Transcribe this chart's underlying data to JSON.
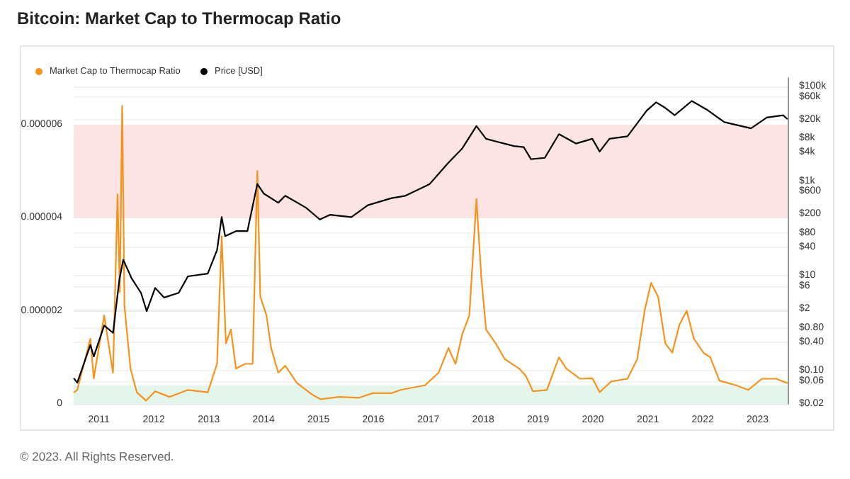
{
  "chart_data": {
    "type": "line",
    "title": "Bitcoin: Market Cap to Thermocap Ratio",
    "annotations": [
      "© 2023. All Rights Reserved."
    ],
    "xlim": [
      "2010-07-17",
      "2023-07-20"
    ],
    "xticks": [
      "2011",
      "2012",
      "2013",
      "2014",
      "2015",
      "2016",
      "2017",
      "2018",
      "2019",
      "2020",
      "2021",
      "2022",
      "2023"
    ],
    "ylim": [
      0,
      7e-06
    ],
    "yticks": [
      0,
      {
        "value": 2e-06,
        "label": "0.000002"
      },
      {
        "value": 4e-06,
        "label": "0.000004"
      },
      {
        "value": 6e-06,
        "label": "0.000006"
      }
    ],
    "y2lim": [
      0.02,
      150000
    ],
    "y2ticks": [
      {
        "value": 0.02,
        "label": "$0.02"
      },
      {
        "value": 0.06,
        "label": "$0.06"
      },
      {
        "value": 0.1,
        "label": "$0.10"
      },
      {
        "value": 0.4,
        "label": "$0.40"
      },
      {
        "value": 0.8,
        "label": "$0.80"
      },
      {
        "value": 2,
        "label": "$2"
      },
      {
        "value": 6,
        "label": "$6"
      },
      {
        "value": 10,
        "label": "$10"
      },
      {
        "value": 40,
        "label": "$40"
      },
      {
        "value": 80,
        "label": "$80"
      },
      {
        "value": 200,
        "label": "$200"
      },
      {
        "value": 600,
        "label": "$600"
      },
      {
        "value": 1000,
        "label": "$1k"
      },
      {
        "value": 4000,
        "label": "$4k"
      },
      {
        "value": 8000,
        "label": "$8k"
      },
      {
        "value": 20000,
        "label": "$20k"
      },
      {
        "value": 60000,
        "label": "$60k"
      },
      {
        "value": 100000,
        "label": "$100k"
      }
    ],
    "log": "y2",
    "grid": "y",
    "legend": "top left",
    "marker": "none",
    "line_style": "solid",
    "bands": [
      {
        "axis": "y",
        "from": 4e-06,
        "to": 6e-06,
        "color": "#fde4e4"
      },
      {
        "axis": "y",
        "from": 0,
        "to": 4e-07,
        "color": "#e4f5ec"
      }
    ],
    "series": [
      {
        "name": "Market Cap to Thermocap Ratio",
        "color": "#f7931a",
        "x": [
          "2010-07-20",
          "2010-08-10",
          "2010-11-05",
          "2010-11-28",
          "2011-02-05",
          "2011-04-05",
          "2011-05-05",
          "2011-05-20",
          "2011-06-05",
          "2011-06-20",
          "2011-07-30",
          "2011-09-10",
          "2011-11-10",
          "2012-01-10",
          "2012-04-15",
          "2012-08-15",
          "2012-12-25",
          "2013-02-25",
          "2013-03-28",
          "2013-04-25",
          "2013-05-28",
          "2013-07-01",
          "2013-09-01",
          "2013-10-20",
          "2013-11-20",
          "2013-12-10",
          "2014-01-20",
          "2014-02-20",
          "2014-04-08",
          "2014-05-25",
          "2014-08-10",
          "2014-11-15",
          "2015-01-15",
          "2015-05-20",
          "2015-09-25",
          "2015-12-28",
          "2016-05-01",
          "2016-07-01",
          "2016-12-10",
          "2017-03-10",
          "2017-05-15",
          "2017-07-01",
          "2017-08-15",
          "2017-10-01",
          "2017-11-17",
          "2017-12-20",
          "2018-01-20",
          "2018-03-25",
          "2018-05-25",
          "2018-08-28",
          "2018-10-12",
          "2018-11-28",
          "2019-03-01",
          "2019-05-20",
          "2019-07-08",
          "2019-10-08",
          "2019-12-28",
          "2020-02-15",
          "2020-05-01",
          "2020-08-18",
          "2020-10-22",
          "2020-12-10",
          "2021-01-22",
          "2021-03-10",
          "2021-04-27",
          "2021-06-12",
          "2021-07-30",
          "2021-09-16",
          "2021-11-03",
          "2022-01-05",
          "2022-02-20",
          "2022-04-22",
          "2022-08-10",
          "2022-10-30",
          "2023-01-30",
          "2023-05-05",
          "2023-07-15"
        ],
        "values": [
          2.5e-07,
          3e-07,
          1.4e-06,
          5.5e-07,
          1.9e-06,
          6.7e-07,
          4.5e-06,
          2.4e-06,
          6.4e-06,
          2.1e-06,
          7.6e-07,
          2.5e-07,
          7e-08,
          2.7e-07,
          1.5e-07,
          3e-07,
          2.5e-07,
          8.6e-07,
          3.6e-06,
          1.3e-06,
          1.6e-06,
          7.6e-07,
          8.6e-07,
          8.6e-07,
          5e-06,
          2.3e-06,
          1.9e-06,
          1.2e-06,
          6.7e-07,
          8.2e-07,
          4.5e-07,
          2.1e-07,
          1e-07,
          1.5e-07,
          1.3e-07,
          2.3e-07,
          2.3e-07,
          3e-07,
          4e-07,
          6.7e-07,
          1.2e-06,
          8.6e-07,
          1.5e-06,
          1.9e-06,
          4.4e-06,
          2.7e-06,
          1.6e-06,
          1.3e-06,
          9.6e-07,
          7.6e-07,
          6e-07,
          2.7e-07,
          3e-07,
          1e-06,
          7.6e-07,
          5.4e-07,
          5.5e-07,
          2.5e-07,
          4.8e-07,
          5.4e-07,
          9.6e-07,
          2e-06,
          2.6e-06,
          2.3e-06,
          1.3e-06,
          1.1e-06,
          1.7e-06,
          2e-06,
          1.4e-06,
          1.1e-06,
          1e-06,
          5e-07,
          4e-07,
          3e-07,
          5.4e-07,
          5.4e-07,
          4.5e-07
        ]
      },
      {
        "name": "Price [USD]",
        "color": "#000000",
        "axis": "y2",
        "x": [
          "2010-07-20",
          "2010-08-10",
          "2010-11-05",
          "2010-11-28",
          "2011-02-05",
          "2011-04-05",
          "2011-05-18",
          "2011-06-12",
          "2011-08-08",
          "2011-10-08",
          "2011-11-15",
          "2012-01-10",
          "2012-03-10",
          "2012-06-15",
          "2012-08-15",
          "2012-12-25",
          "2013-02-25",
          "2013-03-28",
          "2013-04-20",
          "2013-07-01",
          "2013-09-15",
          "2013-11-20",
          "2014-01-01",
          "2014-04-08",
          "2014-05-25",
          "2014-10-10",
          "2015-01-10",
          "2015-03-20",
          "2015-08-08",
          "2015-11-25",
          "2016-05-01",
          "2016-08-01",
          "2016-12-10",
          "2017-01-10",
          "2017-05-15",
          "2017-08-15",
          "2017-11-17",
          "2018-01-20",
          "2018-03-25",
          "2018-07-25",
          "2018-09-28",
          "2018-11-15",
          "2019-02-15",
          "2019-05-20",
          "2019-09-10",
          "2019-12-28",
          "2020-02-15",
          "2020-04-20",
          "2020-08-18",
          "2020-12-25",
          "2021-02-25",
          "2021-04-27",
          "2021-06-28",
          "2021-10-20",
          "2022-02-05",
          "2022-05-25",
          "2022-11-18",
          "2023-03-03",
          "2023-06-20",
          "2023-07-15"
        ],
        "values": [
          0.068,
          0.056,
          0.35,
          0.2,
          0.9,
          0.63,
          8.7,
          22,
          8.7,
          4.4,
          1.8,
          5.6,
          3.5,
          4.4,
          9.8,
          11.2,
          35,
          174,
          69,
          88,
          88,
          870,
          550,
          350,
          490,
          275,
          155,
          195,
          174,
          310,
          437,
          490,
          776,
          870,
          2450,
          4900,
          14500,
          7800,
          6900,
          5500,
          5200,
          2900,
          3100,
          9800,
          6200,
          7800,
          4200,
          7800,
          8800,
          31000,
          46000,
          35000,
          24500,
          49000,
          31000,
          17500,
          13000,
          21900,
          24500,
          20700
        ]
      }
    ]
  }
}
